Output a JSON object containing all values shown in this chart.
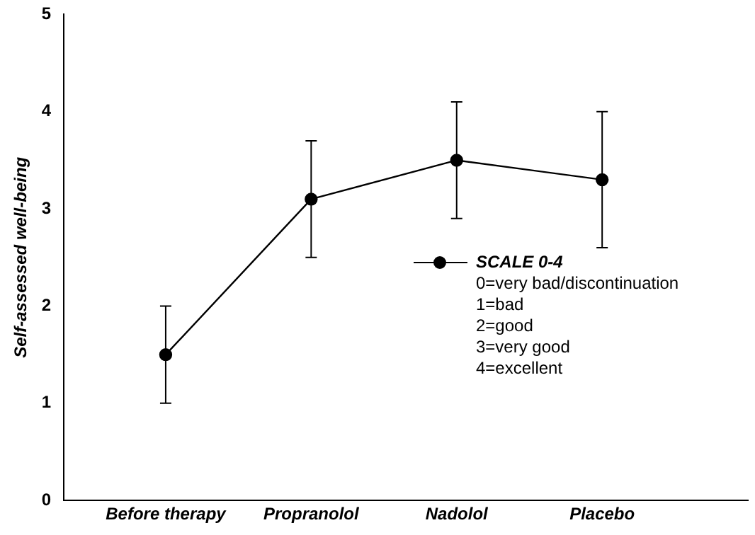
{
  "chart_data": {
    "type": "line",
    "ylabel": "Self-assessed well-being",
    "categories": [
      "Before therapy",
      "Propranolol",
      "Nadolol",
      "Placebo"
    ],
    "series": [
      {
        "name": "SCALE 0-4",
        "color": "#000000",
        "values": [
          1.5,
          3.1,
          3.5,
          3.3
        ],
        "errors": [
          [
            1.0,
            2.0
          ],
          [
            2.5,
            3.7
          ],
          [
            2.9,
            4.1
          ],
          [
            2.6,
            4.0
          ]
        ]
      }
    ],
    "ylim": [
      0,
      5
    ],
    "yticks": [
      0,
      1,
      2,
      3,
      4,
      5
    ],
    "grid": false,
    "legend": "right",
    "marker": "circle",
    "line_style": "solid",
    "annotations": [
      "0=very bad/discontinuation",
      "1=bad",
      "2=good",
      "3=very good",
      "4=excellent"
    ]
  }
}
